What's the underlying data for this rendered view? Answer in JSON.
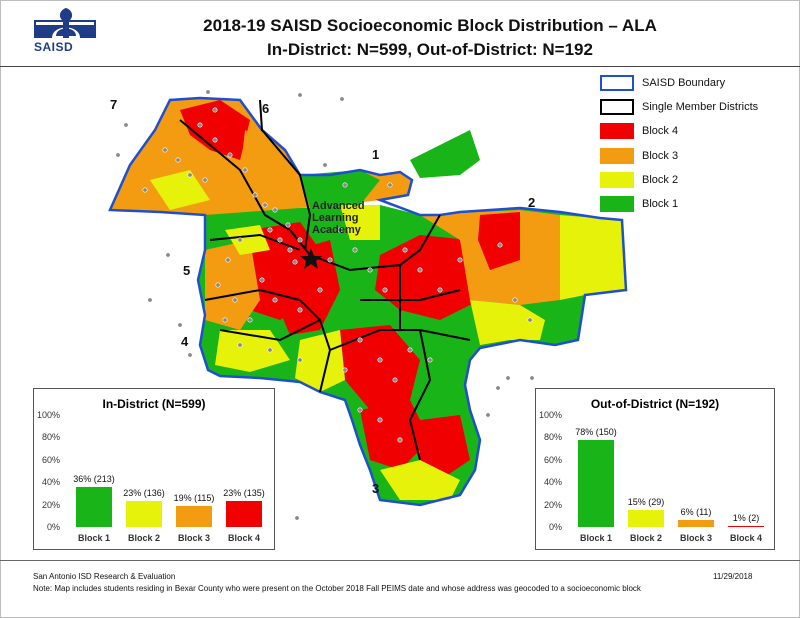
{
  "logo": {
    "text": "SAISD"
  },
  "title": {
    "line1": "2018-19 SAISD Socioeconomic Block Distribution – ALA",
    "line2": "In-District: N=599, Out-of-District: N=192"
  },
  "legend": [
    {
      "label": "SAISD Boundary",
      "color": "#ffffff",
      "border": "#1f4fd1"
    },
    {
      "label": "Single Member Districts",
      "color": "#ffffff",
      "border": "#000000"
    },
    {
      "label": "Block 4",
      "color": "#f00000",
      "border": "#f00000"
    },
    {
      "label": "Block 3",
      "color": "#f39c12",
      "border": "#f39c12"
    },
    {
      "label": "Block 2",
      "color": "#e6f20a",
      "border": "#e6f20a"
    },
    {
      "label": "Block 1",
      "color": "#18b418",
      "border": "#18b418"
    }
  ],
  "districts": {
    "d1": "1",
    "d2": "2",
    "d3": "3",
    "d4": "4",
    "d5": "5",
    "d6": "6",
    "d7": "7"
  },
  "school": {
    "line1": "Advanced",
    "line2": "Learning",
    "line3": "Academy",
    "icon": "star-icon"
  },
  "in_district": {
    "title": "In-District (N=599)",
    "yticks": [
      "100%",
      "80%",
      "60%",
      "40%",
      "20%",
      "0%"
    ],
    "bars": [
      {
        "category": "Block 1",
        "percent": 36,
        "label": "36% (213)",
        "color": "#18b418"
      },
      {
        "category": "Block 2",
        "percent": 23,
        "label": "23% (136)",
        "color": "#e6f20a"
      },
      {
        "category": "Block 3",
        "percent": 19,
        "label": "19% (115)",
        "color": "#f39c12"
      },
      {
        "category": "Block 4",
        "percent": 23,
        "label": "23% (135)",
        "color": "#f00000"
      }
    ]
  },
  "out_district": {
    "title": "Out-of-District (N=192)",
    "yticks": [
      "100%",
      "80%",
      "60%",
      "40%",
      "20%",
      "0%"
    ],
    "bars": [
      {
        "category": "Block 1",
        "percent": 78,
        "label": "78% (150)",
        "color": "#18b418"
      },
      {
        "category": "Block 2",
        "percent": 15,
        "label": "15% (29)",
        "color": "#e6f20a"
      },
      {
        "category": "Block 3",
        "percent": 6,
        "label": "6% (11)",
        "color": "#f39c12"
      },
      {
        "category": "Block 4",
        "percent": 1,
        "label": "1% (2)",
        "color": "#f00000"
      }
    ]
  },
  "footer": {
    "source": "San Antonio ISD Research & Evaluation",
    "date": "11/29/2018",
    "note": "Note: Map includes students residing in Bexar County who were present on the October 2018 Fall PEIMS date and whose address was geocoded to a socioeconomic block"
  }
}
